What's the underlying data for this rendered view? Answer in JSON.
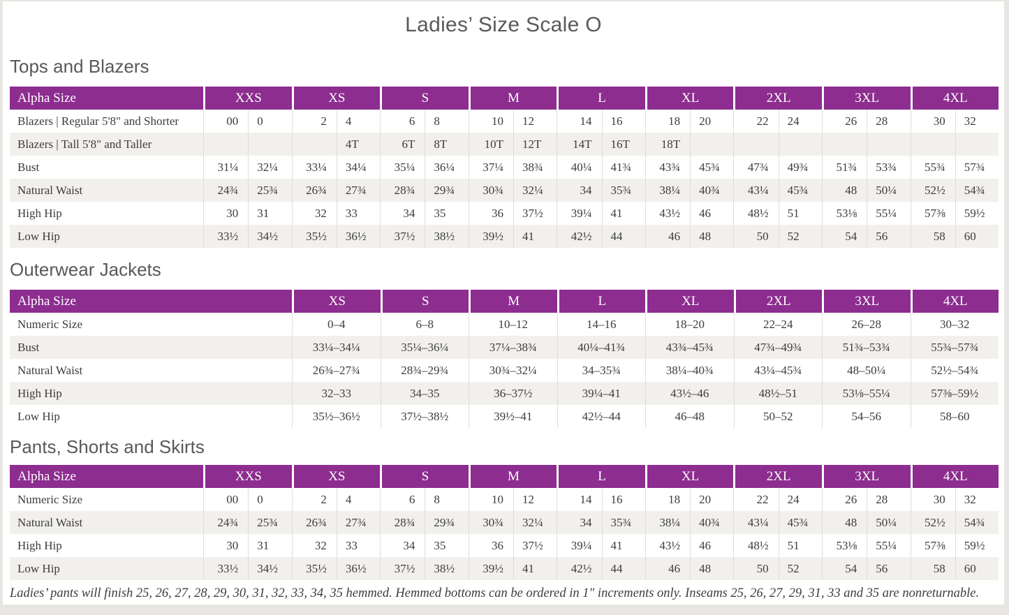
{
  "title": "Ladies’ Size Scale O",
  "footnote": "Ladies’ pants will finish 25, 26, 27, 28, 29, 30, 31, 32, 33, 34, 35 hemmed. Hemmed bottoms can be ordered in 1\" increments only. Inseams 25, 26, 27, 29, 31, 33 and 35 are nonreturnable.",
  "colors": {
    "header_bg": "#8C2D8F",
    "header_text": "#FFFFFF",
    "stripe": "#F2F0ED",
    "divider": "#DFDDDA",
    "body_text": "#3C3C3C",
    "heading_text": "#58595B",
    "page_bg": "#FFFFFF",
    "outer_bg": "#E8E6E2"
  },
  "sections": [
    {
      "heading": "Tops and Blazers",
      "header_label": "Alpha Size",
      "layout": "paired",
      "label_col_width": 277,
      "sizes": [
        "XXS",
        "XS",
        "S",
        "M",
        "L",
        "XL",
        "2XL",
        "3XL",
        "4XL"
      ],
      "rows": [
        {
          "label": "Blazers | Regular 5'8\" and Shorter",
          "values": [
            [
              "00",
              "0"
            ],
            [
              "2",
              "4"
            ],
            [
              "6",
              "8"
            ],
            [
              "10",
              "12"
            ],
            [
              "14",
              "16"
            ],
            [
              "18",
              "20"
            ],
            [
              "22",
              "24"
            ],
            [
              "26",
              "28"
            ],
            [
              "30",
              "32"
            ]
          ]
        },
        {
          "label": "Blazers | Tall 5'8\" and Taller",
          "values": [
            [
              "",
              ""
            ],
            [
              "",
              "4T"
            ],
            [
              "6T",
              "8T"
            ],
            [
              "10T",
              "12T"
            ],
            [
              "14T",
              "16T"
            ],
            [
              "18T",
              ""
            ],
            [
              "",
              ""
            ],
            [
              "",
              ""
            ],
            [
              "",
              ""
            ]
          ]
        },
        {
          "label": "Bust",
          "values": [
            [
              "31¼",
              "32¼"
            ],
            [
              "33¼",
              "34¼"
            ],
            [
              "35¼",
              "36¼"
            ],
            [
              "37¼",
              "38¾"
            ],
            [
              "40¼",
              "41¾"
            ],
            [
              "43¾",
              "45¾"
            ],
            [
              "47¾",
              "49¾"
            ],
            [
              "51¾",
              "53¾"
            ],
            [
              "55¾",
              "57¾"
            ]
          ]
        },
        {
          "label": "Natural Waist",
          "values": [
            [
              "24¾",
              "25¾"
            ],
            [
              "26¾",
              "27¾"
            ],
            [
              "28¾",
              "29¾"
            ],
            [
              "30¾",
              "32¼"
            ],
            [
              "34",
              "35¾"
            ],
            [
              "38¼",
              "40¾"
            ],
            [
              "43¼",
              "45¾"
            ],
            [
              "48",
              "50¼"
            ],
            [
              "52½",
              "54¾"
            ]
          ]
        },
        {
          "label": "High Hip",
          "values": [
            [
              "30",
              "31"
            ],
            [
              "32",
              "33"
            ],
            [
              "34",
              "35"
            ],
            [
              "36",
              "37½"
            ],
            [
              "39¼",
              "41"
            ],
            [
              "43½",
              "46"
            ],
            [
              "48½",
              "51"
            ],
            [
              "53⅛",
              "55¼"
            ],
            [
              "57⅜",
              "59½"
            ]
          ]
        },
        {
          "label": "Low Hip",
          "values": [
            [
              "33½",
              "34½"
            ],
            [
              "35½",
              "36½"
            ],
            [
              "37½",
              "38½"
            ],
            [
              "39½",
              "41"
            ],
            [
              "42½",
              "44"
            ],
            [
              "46",
              "48"
            ],
            [
              "50",
              "52"
            ],
            [
              "54",
              "56"
            ],
            [
              "58",
              "60"
            ]
          ]
        }
      ]
    },
    {
      "heading": "Outerwear Jackets",
      "header_label": "Alpha Size",
      "layout": "single",
      "label_col_width": 404,
      "sizes": [
        "XS",
        "S",
        "M",
        "L",
        "XL",
        "2XL",
        "3XL",
        "4XL"
      ],
      "rows": [
        {
          "label": "Numeric Size",
          "values": [
            "0–4",
            "6–8",
            "10–12",
            "14–16",
            "18–20",
            "22–24",
            "26–28",
            "30–32"
          ]
        },
        {
          "label": "Bust",
          "values": [
            "33¼–34¼",
            "35¼–36¼",
            "37¼–38¾",
            "40¼–41¾",
            "43¾–45¾",
            "47¾–49¾",
            "51¾–53¾",
            "55¾–57¾"
          ]
        },
        {
          "label": "Natural Waist",
          "values": [
            "26¾–27¾",
            "28¾–29¾",
            "30¾–32¼",
            "34–35¾",
            "38¼–40¾",
            "43¼–45¾",
            "48–50¼",
            "52½–54¾"
          ]
        },
        {
          "label": "High Hip",
          "values": [
            "32–33",
            "34–35",
            "36–37½",
            "39¼–41",
            "43½–46",
            "48½–51",
            "53⅛–55¼",
            "57⅜–59½"
          ]
        },
        {
          "label": "Low Hip",
          "values": [
            "35½–36½",
            "37½–38½",
            "39½–41",
            "42½–44",
            "46–48",
            "50–52",
            "54–56",
            "58–60"
          ]
        }
      ]
    },
    {
      "heading": "Pants, Shorts and Skirts",
      "header_label": "Alpha Size",
      "layout": "paired",
      "label_col_width": 277,
      "sizes": [
        "XXS",
        "XS",
        "S",
        "M",
        "L",
        "XL",
        "2XL",
        "3XL",
        "4XL"
      ],
      "rows": [
        {
          "label": "Numeric Size",
          "values": [
            [
              "00",
              "0"
            ],
            [
              "2",
              "4"
            ],
            [
              "6",
              "8"
            ],
            [
              "10",
              "12"
            ],
            [
              "14",
              "16"
            ],
            [
              "18",
              "20"
            ],
            [
              "22",
              "24"
            ],
            [
              "26",
              "28"
            ],
            [
              "30",
              "32"
            ]
          ]
        },
        {
          "label": "Natural Waist",
          "values": [
            [
              "24¾",
              "25¾"
            ],
            [
              "26¾",
              "27¾"
            ],
            [
              "28¾",
              "29¾"
            ],
            [
              "30¾",
              "32¼"
            ],
            [
              "34",
              "35¾"
            ],
            [
              "38¼",
              "40¾"
            ],
            [
              "43¼",
              "45¾"
            ],
            [
              "48",
              "50¼"
            ],
            [
              "52½",
              "54¾"
            ]
          ]
        },
        {
          "label": "High Hip",
          "values": [
            [
              "30",
              "31"
            ],
            [
              "32",
              "33"
            ],
            [
              "34",
              "35"
            ],
            [
              "36",
              "37½"
            ],
            [
              "39¼",
              "41"
            ],
            [
              "43½",
              "46"
            ],
            [
              "48½",
              "51"
            ],
            [
              "53⅛",
              "55¼"
            ],
            [
              "57⅜",
              "59½"
            ]
          ]
        },
        {
          "label": "Low Hip",
          "values": [
            [
              "33½",
              "34½"
            ],
            [
              "35½",
              "36½"
            ],
            [
              "37½",
              "38½"
            ],
            [
              "39½",
              "41"
            ],
            [
              "42½",
              "44"
            ],
            [
              "46",
              "48"
            ],
            [
              "50",
              "52"
            ],
            [
              "54",
              "56"
            ],
            [
              "58",
              "60"
            ]
          ]
        }
      ]
    }
  ]
}
